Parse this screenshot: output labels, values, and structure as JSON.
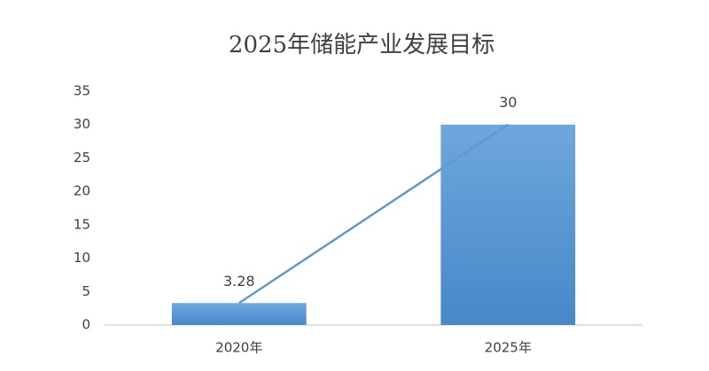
{
  "chart_data": {
    "type": "bar",
    "title": "2025年储能产业发展目标",
    "categories": [
      "2020年",
      "2025年"
    ],
    "series": [
      {
        "type": "bar",
        "color": "#5b9bd5",
        "values": [
          3.28,
          30
        ]
      },
      {
        "type": "line",
        "color": "#5b9bd5",
        "values": [
          3.28,
          30
        ]
      }
    ],
    "ylim": [
      0,
      35
    ],
    "yticks": [
      0,
      5,
      10,
      15,
      20,
      25,
      30,
      35
    ],
    "grid": false
  }
}
